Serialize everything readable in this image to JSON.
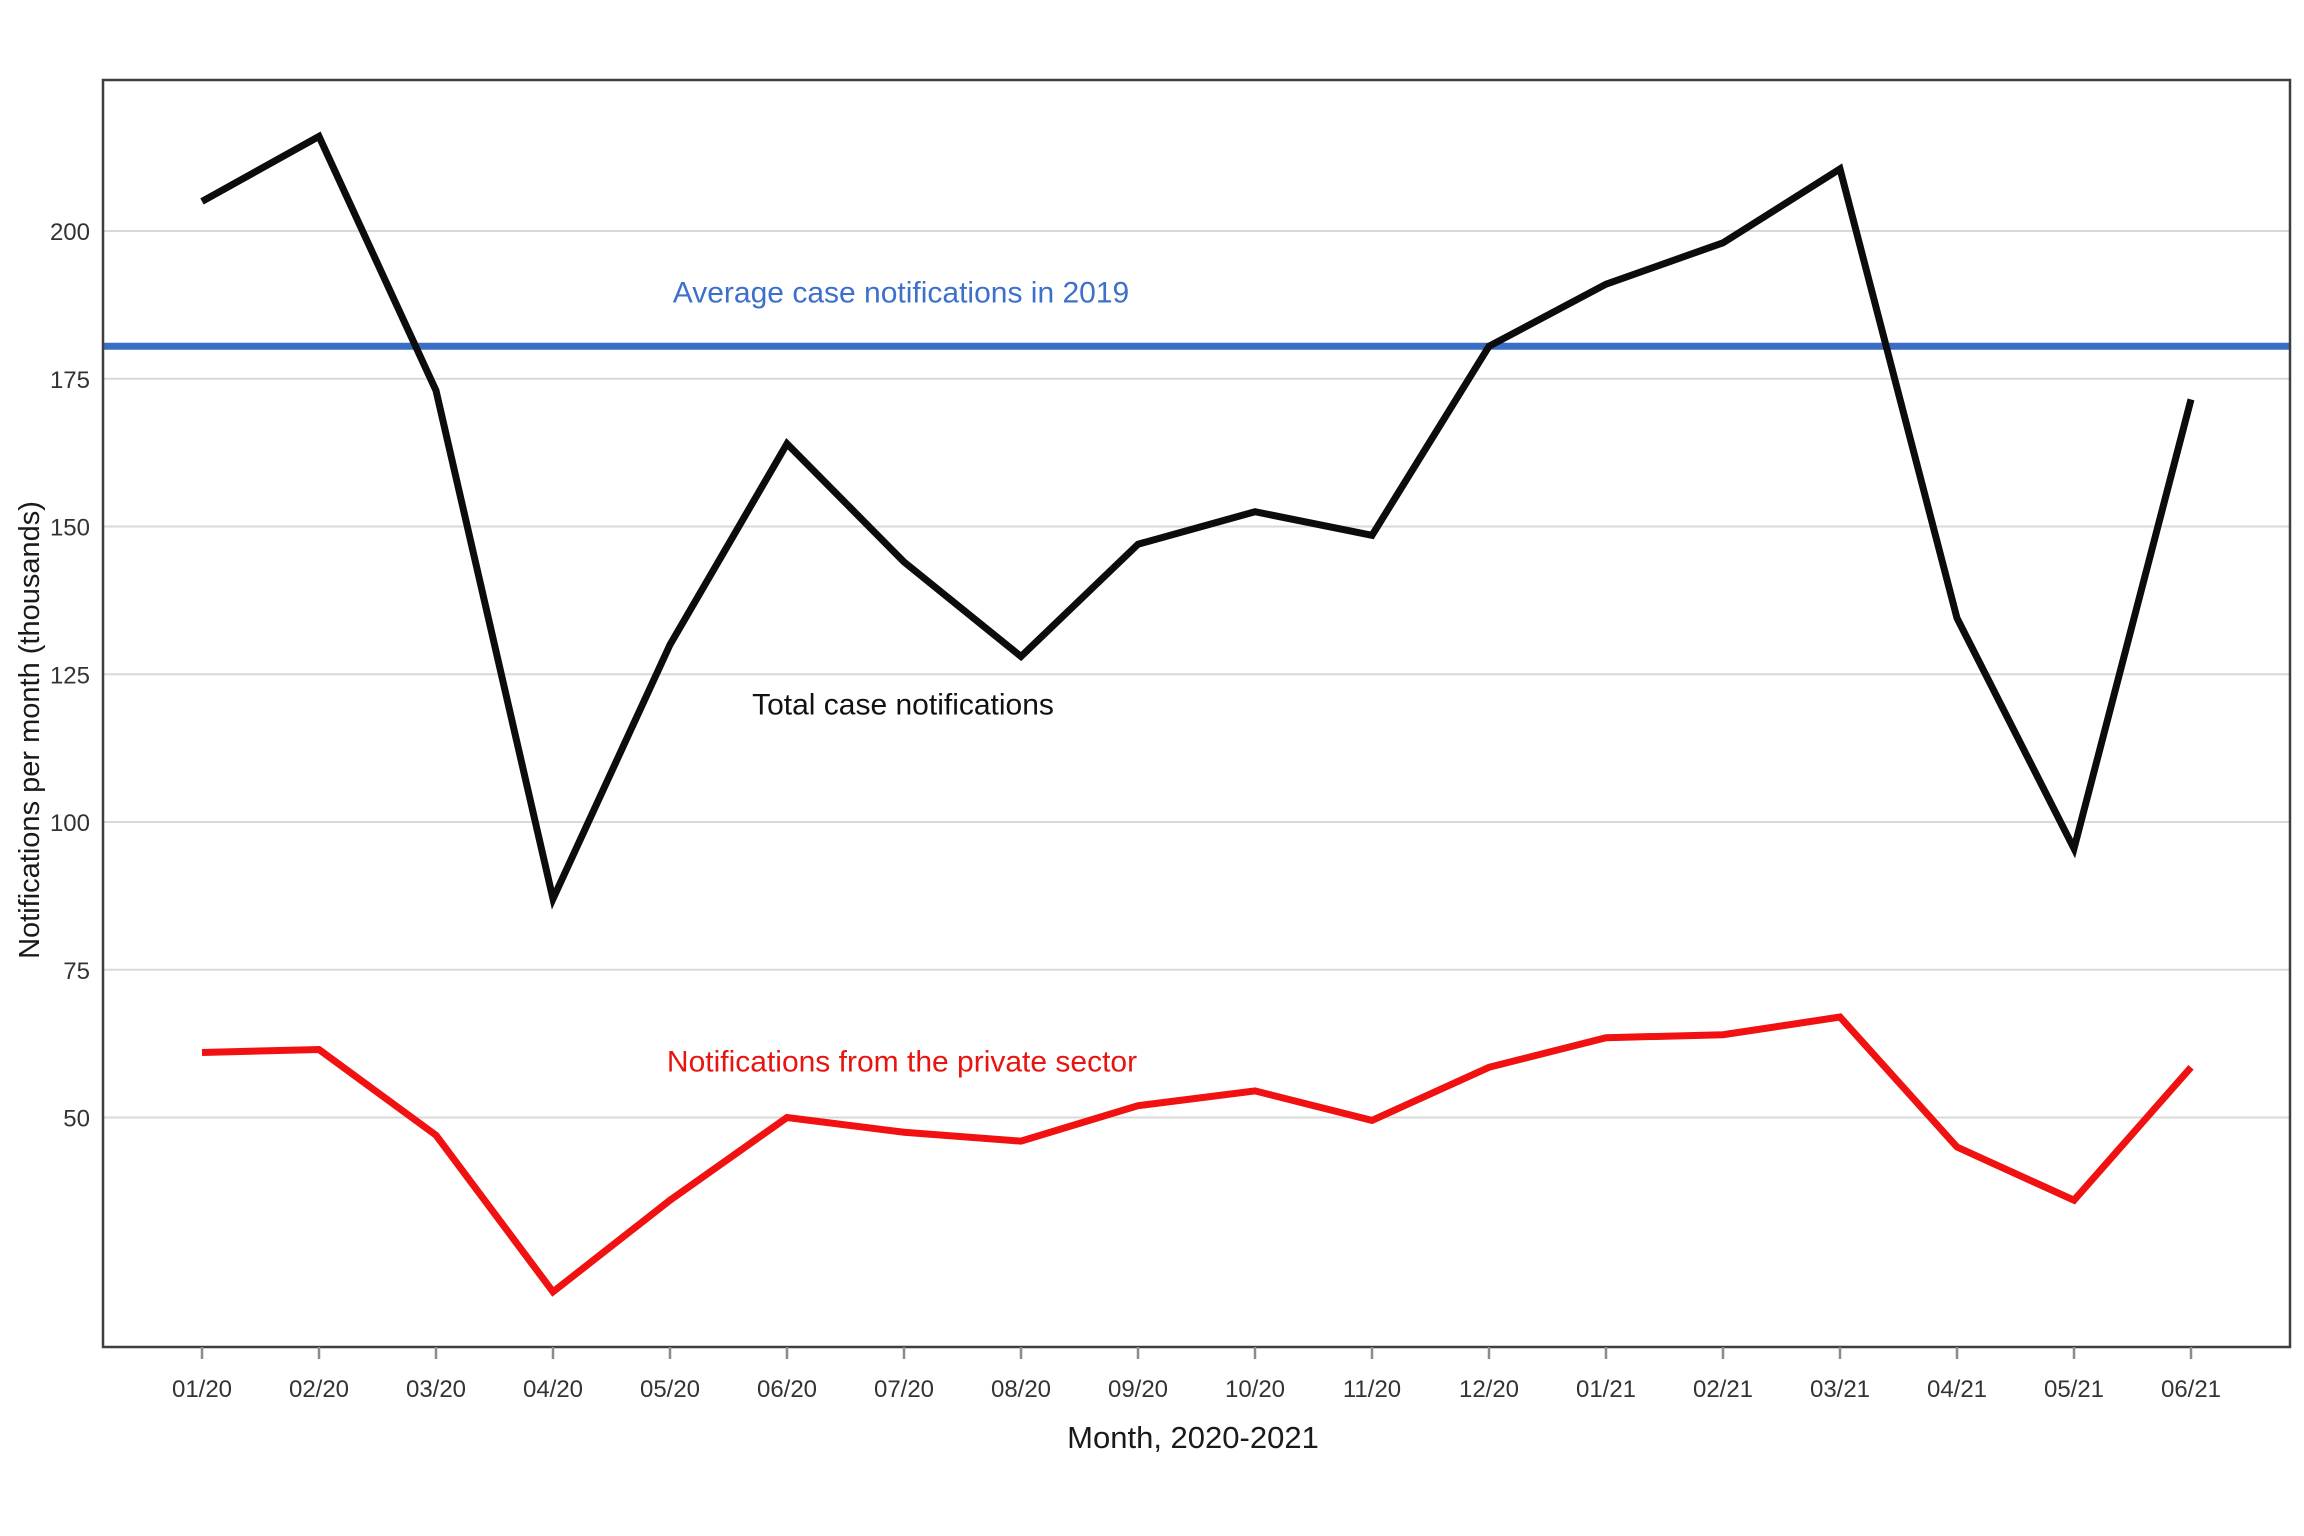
{
  "colors": {
    "background": "#ffffff",
    "grid": "#d9d9d9",
    "plot_border": "#3f3f3f",
    "tick_mark": "#8c8c8c",
    "tick_label": "#333333",
    "axis_title": "#1a1a1a"
  },
  "chart_data": {
    "type": "line",
    "title": "",
    "xlabel": "Month, 2020-2021",
    "ylabel": "Notifications per month (thousands)",
    "x_tick_labels": [
      "01/20",
      "02/20",
      "03/20",
      "04/20",
      "05/20",
      "06/20",
      "07/20",
      "08/20",
      "09/20",
      "10/20",
      "11/20",
      "12/20",
      "01/21",
      "02/21",
      "03/21",
      "04/21",
      "05/21",
      "06/21"
    ],
    "y_ticks": [
      200,
      175,
      150,
      125,
      100,
      75,
      50
    ],
    "ylim": [
      11,
      226
    ],
    "grid": "horizontal",
    "legend": "annotations on chart",
    "series": [
      {
        "name": "Total case notifications",
        "color": "#0c0c0c",
        "label_color": "#111111",
        "values": [
          205,
          216,
          173,
          87,
          130,
          164,
          144,
          128,
          147,
          152.5,
          148.5,
          180.5,
          191,
          198,
          210.5,
          134.5,
          95.5,
          171.5
        ]
      },
      {
        "name": "Notifications from the private sector",
        "color": "#f01110",
        "label_color": "#e8140f",
        "values": [
          61,
          61.5,
          47,
          20.5,
          36,
          50,
          47.5,
          46,
          52,
          54.5,
          49.5,
          58.5,
          63.5,
          64,
          67,
          45,
          36,
          58.5
        ]
      }
    ],
    "baseline": {
      "label": "Average case notifications in 2019",
      "value": 180.5,
      "color": "#3a6ec5",
      "label_color": "#3d70ca"
    }
  }
}
